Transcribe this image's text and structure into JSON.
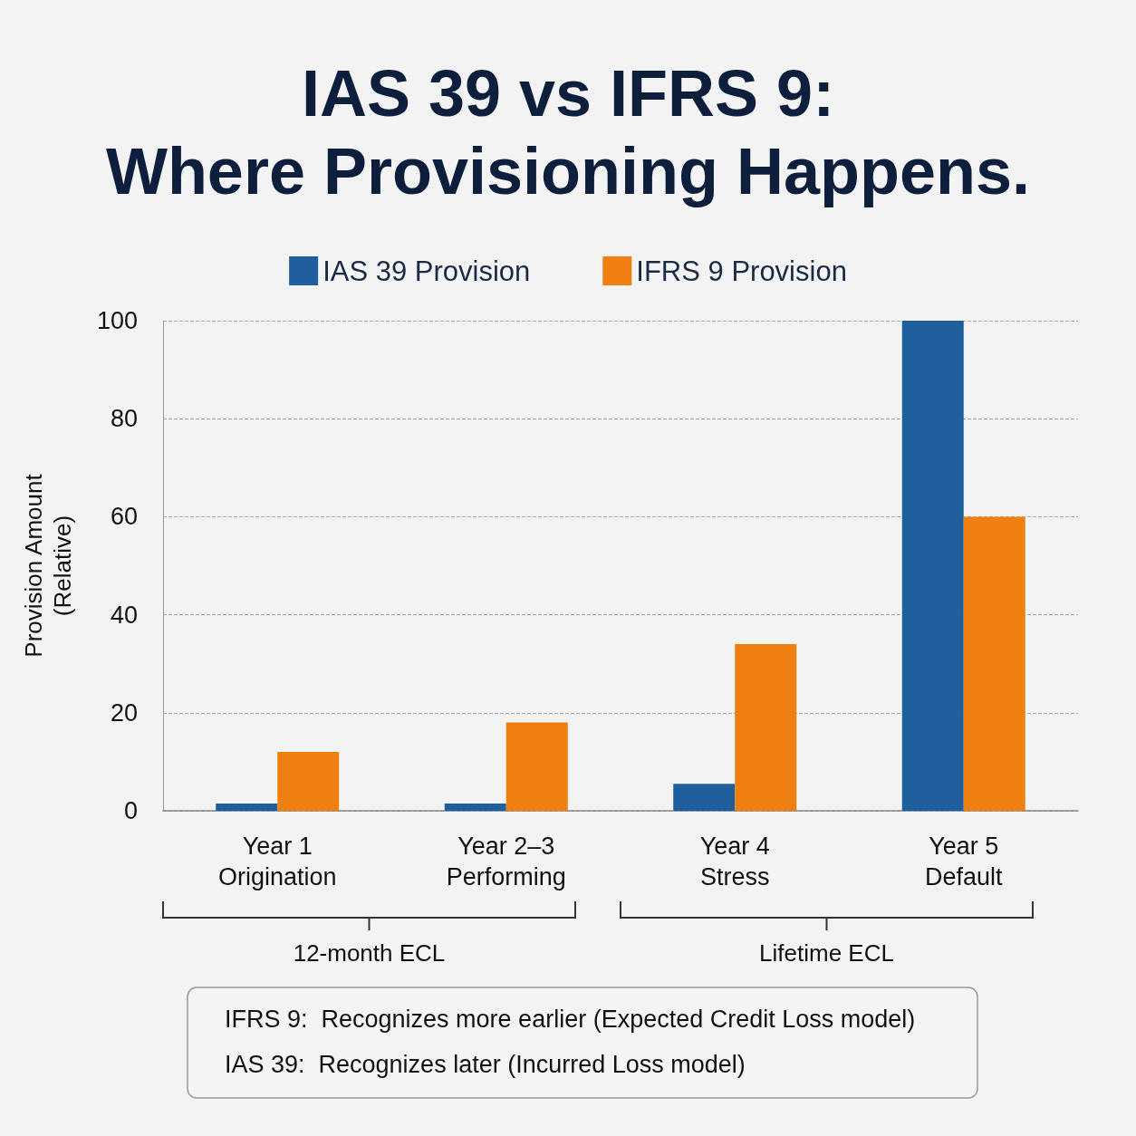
{
  "chart_data": {
    "type": "bar",
    "title": "IAS 39 vs IFRS 9:\nWhere Provisioning Happens.",
    "ylabel": "Provision Amount\n(Relative)",
    "categories": [
      "Year 1\nOrigination",
      "Year 2–3\nPerforming",
      "Year 4\nStress",
      "Year 5\nDefault"
    ],
    "series": [
      {
        "name": "IAS 39 Provision",
        "color": "#1f5f9e",
        "values": [
          1.5,
          1.5,
          5.5,
          100
        ]
      },
      {
        "name": "IFRS 9 Provision",
        "color": "#f07f12",
        "values": [
          12,
          18,
          34,
          60
        ]
      }
    ],
    "ylim": [
      0,
      100
    ],
    "yticks": [
      0,
      20,
      40,
      60,
      80,
      100
    ],
    "grid": "y",
    "legend": "top",
    "annotations": [
      "12-month ECL",
      "Lifetime ECL",
      "IFRS 9:  Recognizes more earlier (Expected Credit Loss model)",
      "IAS 39:  Recognizes later (Incurred Loss model)"
    ]
  }
}
